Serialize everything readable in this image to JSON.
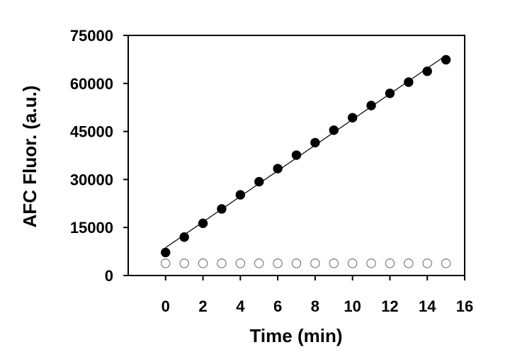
{
  "chart_data": {
    "type": "scatter",
    "title": "",
    "xlabel": "Time (min)",
    "ylabel": "AFC Fluor. (a.u.)",
    "xlim": [
      -2,
      16
    ],
    "ylim": [
      0,
      75000
    ],
    "x_ticks": [
      "0",
      "2",
      "4",
      "6",
      "8",
      "10",
      "12",
      "14",
      "16"
    ],
    "y_ticks": [
      "0",
      "15000",
      "30000",
      "45000",
      "60000",
      "75000"
    ],
    "grid": false,
    "legend": "none",
    "series": [
      {
        "marker": "filled-circle",
        "color": "#000000",
        "fit_line": true,
        "x": [
          0,
          1,
          2,
          3,
          4,
          5,
          6,
          7,
          8,
          9,
          10,
          11,
          12,
          13,
          14,
          15
        ],
        "y": [
          7200,
          12000,
          16300,
          20800,
          25200,
          29300,
          33400,
          37600,
          41500,
          45400,
          49300,
          53100,
          56900,
          60400,
          63800,
          67400
        ]
      },
      {
        "marker": "open-circle",
        "color": "#000000",
        "fit_line": false,
        "x": [
          0,
          1,
          2,
          3,
          4,
          5,
          6,
          7,
          8,
          9,
          10,
          11,
          12,
          13,
          14,
          15
        ],
        "y": [
          3800,
          3800,
          3800,
          3800,
          3800,
          3800,
          3800,
          3800,
          3800,
          3800,
          3800,
          3800,
          3800,
          3800,
          3800,
          3800
        ]
      }
    ]
  }
}
